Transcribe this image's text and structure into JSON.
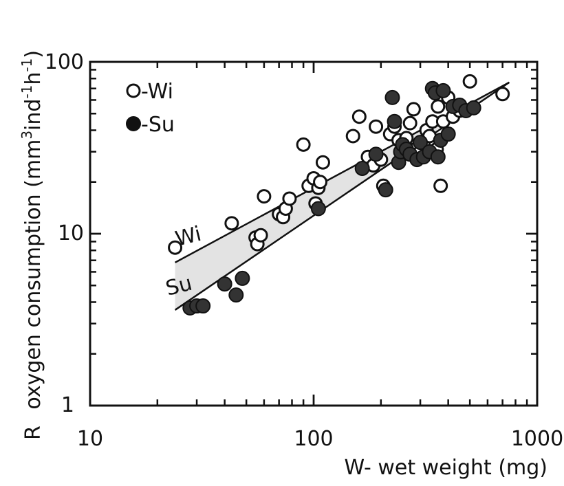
{
  "chart_data": {
    "type": "scatter",
    "xscale": "log",
    "yscale": "log",
    "xlim": [
      10,
      1000
    ],
    "ylim": [
      1,
      100
    ],
    "xticks": [
      "10",
      "100",
      "1000"
    ],
    "yticks": [
      "1",
      "10",
      "100"
    ],
    "xlabel": "W- wet weight (mg)",
    "ylabel_prefix": "R",
    "ylabel_main": "oxygen consumption (mm",
    "ylabel_sup1": "3",
    "ylabel_mid": "ind",
    "ylabel_sup2": "-1",
    "ylabel_mid2": "h",
    "ylabel_sup3": "-1",
    "ylabel_end": ")",
    "legend": [
      {
        "marker": "open",
        "label": "-Wi"
      },
      {
        "marker": "filled",
        "label": "-Su"
      }
    ],
    "curve_labels": {
      "wi": "Wi",
      "su": "Su"
    },
    "series": [
      {
        "name": "Wi",
        "marker": "open",
        "points": [
          [
            24,
            8.3
          ],
          [
            43,
            11.5
          ],
          [
            55,
            9.5
          ],
          [
            56,
            8.7
          ],
          [
            58,
            9.8
          ],
          [
            60,
            16.5
          ],
          [
            70,
            13
          ],
          [
            73,
            12.5
          ],
          [
            75,
            14
          ],
          [
            78,
            16
          ],
          [
            90,
            33
          ],
          [
            95,
            19
          ],
          [
            100,
            21
          ],
          [
            102,
            15
          ],
          [
            105,
            18.5
          ],
          [
            107,
            20
          ],
          [
            110,
            26
          ],
          [
            150,
            37
          ],
          [
            160,
            48
          ],
          [
            175,
            28
          ],
          [
            185,
            25
          ],
          [
            190,
            42
          ],
          [
            200,
            27
          ],
          [
            205,
            19
          ],
          [
            220,
            38
          ],
          [
            230,
            42
          ],
          [
            240,
            35
          ],
          [
            250,
            30
          ],
          [
            260,
            36
          ],
          [
            270,
            44
          ],
          [
            280,
            53
          ],
          [
            285,
            31
          ],
          [
            300,
            30
          ],
          [
            310,
            34
          ],
          [
            320,
            40
          ],
          [
            330,
            37
          ],
          [
            340,
            45
          ],
          [
            355,
            31
          ],
          [
            360,
            55
          ],
          [
            370,
            19
          ],
          [
            380,
            45
          ],
          [
            400,
            62
          ],
          [
            420,
            48
          ],
          [
            450,
            52
          ],
          [
            500,
            77
          ],
          [
            700,
            65
          ]
        ]
      },
      {
        "name": "Su",
        "marker": "filled",
        "points": [
          [
            28,
            3.7
          ],
          [
            30,
            3.8
          ],
          [
            32,
            3.8
          ],
          [
            40,
            5.1
          ],
          [
            45,
            4.4
          ],
          [
            48,
            5.5
          ],
          [
            105,
            14
          ],
          [
            165,
            24
          ],
          [
            190,
            29
          ],
          [
            210,
            18
          ],
          [
            225,
            62
          ],
          [
            230,
            45
          ],
          [
            240,
            26
          ],
          [
            245,
            30
          ],
          [
            250,
            33
          ],
          [
            260,
            31
          ],
          [
            270,
            29
          ],
          [
            290,
            27
          ],
          [
            300,
            34
          ],
          [
            310,
            28
          ],
          [
            330,
            30
          ],
          [
            340,
            70
          ],
          [
            350,
            66
          ],
          [
            360,
            28
          ],
          [
            370,
            35
          ],
          [
            380,
            68
          ],
          [
            400,
            38
          ],
          [
            420,
            55
          ],
          [
            450,
            56
          ],
          [
            480,
            52
          ],
          [
            520,
            54
          ]
        ]
      }
    ],
    "fit_lines": [
      {
        "name": "Wi",
        "from": [
          24,
          6.8
        ],
        "to": [
          750,
          76
        ]
      },
      {
        "name": "Su",
        "from": [
          24,
          3.6
        ],
        "to": [
          750,
          76
        ]
      }
    ]
  }
}
